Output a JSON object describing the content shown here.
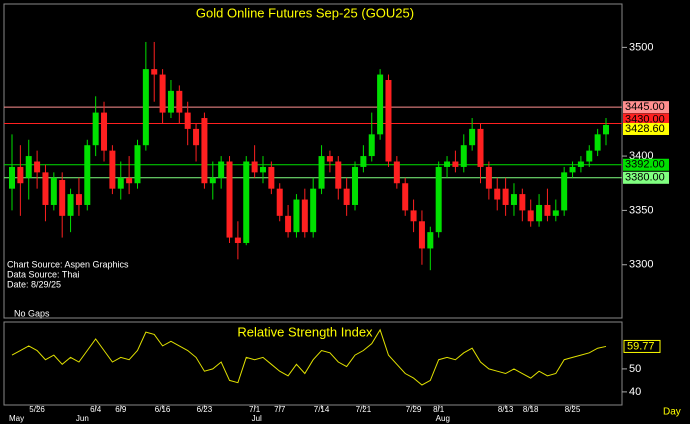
{
  "chart_data": {
    "type": "candlestick",
    "title": "Gold Online Futures Sep-25 (GOU25)",
    "notes": [
      "Chart Source: Aspen Graphics",
      "Data Source: Thai",
      "Date:   8/29/25"
    ],
    "gap_note": "No Gaps",
    "categories": [
      null,
      null,
      null,
      "5/26",
      null,
      null,
      null,
      null,
      null,
      null,
      "6/4",
      null,
      null,
      "6/9",
      null,
      null,
      null,
      null,
      "6/16",
      null,
      null,
      null,
      null,
      "6/23",
      null,
      null,
      null,
      null,
      null,
      "7/1",
      null,
      null,
      "7/7",
      null,
      null,
      null,
      null,
      "7/14",
      null,
      null,
      null,
      null,
      "7/21",
      null,
      null,
      null,
      null,
      null,
      "7/29",
      null,
      null,
      "8/1",
      null,
      null,
      null,
      null,
      null,
      null,
      null,
      "8/13",
      null,
      null,
      "8/18",
      null,
      null,
      null,
      null,
      "8/25",
      null,
      null,
      null,
      null
    ],
    "months": [
      "May",
      null,
      null,
      null,
      null,
      null,
      null,
      null,
      "Jun",
      null,
      null,
      null,
      null,
      null,
      null,
      null,
      null,
      null,
      null,
      null,
      null,
      null,
      null,
      null,
      null,
      null,
      null,
      null,
      null,
      "Jul",
      null,
      null,
      null,
      null,
      null,
      null,
      null,
      null,
      null,
      null,
      null,
      null,
      null,
      null,
      null,
      null,
      null,
      null,
      null,
      null,
      null,
      "Aug",
      null,
      null,
      null,
      null,
      null,
      null,
      null,
      null,
      null,
      null,
      null,
      null,
      null,
      null,
      null,
      null,
      null,
      null,
      null,
      null
    ],
    "x_unit": "Day",
    "open": [
      3370,
      3390,
      3380,
      3395,
      3385,
      3355,
      3378,
      3345,
      3365,
      3355,
      3410,
      3440,
      3405,
      3370,
      3380,
      3375,
      3410,
      3480,
      3475,
      3440,
      3460,
      3440,
      3425,
      3435,
      3375,
      3380,
      3395,
      3325,
      3320,
      3395,
      3385,
      3390,
      3370,
      3345,
      3330,
      3360,
      3330,
      3370,
      3400,
      3395,
      3370,
      3355,
      3390,
      3400,
      3420,
      3470,
      3395,
      3375,
      3350,
      3340,
      3315,
      3330,
      3390,
      3395,
      3390,
      3410,
      3425,
      3390,
      3370,
      3370,
      3355,
      3365,
      3350,
      3340,
      3355,
      3345,
      3350,
      3385,
      3390,
      3395,
      3405,
      3420
    ],
    "high": [
      3420,
      3410,
      3415,
      3405,
      3392,
      3385,
      3385,
      3370,
      3380,
      3415,
      3455,
      3450,
      3410,
      3395,
      3400,
      3415,
      3505,
      3505,
      3480,
      3470,
      3465,
      3450,
      3430,
      3440,
      3395,
      3400,
      3400,
      3340,
      3400,
      3410,
      3400,
      3395,
      3375,
      3355,
      3365,
      3370,
      3380,
      3410,
      3405,
      3400,
      3380,
      3395,
      3410,
      3440,
      3480,
      3475,
      3400,
      3380,
      3360,
      3350,
      3335,
      3395,
      3400,
      3405,
      3420,
      3435,
      3430,
      3395,
      3380,
      3380,
      3375,
      3370,
      3360,
      3365,
      3370,
      3360,
      3390,
      3395,
      3400,
      3410,
      3425,
      3435
    ],
    "low": [
      3350,
      3345,
      3360,
      3370,
      3340,
      3350,
      3325,
      3330,
      3345,
      3350,
      3400,
      3395,
      3365,
      3360,
      3365,
      3370,
      3405,
      3450,
      3430,
      3435,
      3430,
      3410,
      3395,
      3370,
      3360,
      3370,
      3320,
      3305,
      3318,
      3380,
      3375,
      3365,
      3340,
      3325,
      3325,
      3325,
      3325,
      3365,
      3385,
      3360,
      3345,
      3350,
      3385,
      3395,
      3415,
      3390,
      3370,
      3345,
      3330,
      3300,
      3295,
      3325,
      3380,
      3385,
      3385,
      3405,
      3375,
      3360,
      3350,
      3345,
      3345,
      3340,
      3335,
      3335,
      3340,
      3340,
      3345,
      3380,
      3385,
      3390,
      3400,
      3410
    ],
    "close": [
      3390,
      3375,
      3400,
      3385,
      3355,
      3380,
      3345,
      3365,
      3355,
      3410,
      3440,
      3405,
      3370,
      3380,
      3375,
      3410,
      3480,
      3475,
      3440,
      3460,
      3440,
      3425,
      3410,
      3375,
      3380,
      3395,
      3325,
      3320,
      3395,
      3385,
      3390,
      3370,
      3345,
      3330,
      3360,
      3330,
      3370,
      3400,
      3395,
      3370,
      3355,
      3390,
      3400,
      3420,
      3475,
      3395,
      3375,
      3350,
      3340,
      3315,
      3330,
      3390,
      3395,
      3390,
      3410,
      3425,
      3390,
      3370,
      3360,
      3355,
      3365,
      3350,
      3340,
      3355,
      3345,
      3350,
      3385,
      3390,
      3395,
      3405,
      3420,
      3428.6
    ],
    "up_color": "#00e000",
    "down_color": "#ff2020",
    "ylim": [
      3251,
      3539
    ],
    "yticks": [
      3300,
      3350,
      3400,
      3500
    ],
    "levels": [
      {
        "value": 3445,
        "label": "3445.00",
        "color": "#ff9090"
      },
      {
        "value": 3430,
        "label": "3430.00",
        "color": "#ff2020"
      },
      {
        "value": 3392,
        "label": "3392.00",
        "color": "#00e000"
      },
      {
        "value": 3380,
        "label": "3380.00",
        "color": "#80ff80"
      }
    ],
    "last_price": {
      "value": 3428.6,
      "label": "3428.60",
      "color": "#ffff00"
    },
    "rsi": {
      "title": "Relative Strength Index",
      "color": "#e0e000",
      "values": [
        56,
        58,
        60,
        58,
        54,
        56,
        52,
        55,
        53,
        58,
        63,
        58,
        53,
        55,
        54,
        58,
        66,
        65,
        60,
        62,
        60,
        58,
        55,
        49,
        50,
        53,
        45,
        44,
        55,
        54,
        55,
        52,
        49,
        47,
        52,
        48,
        54,
        58,
        57,
        53,
        51,
        56,
        58,
        61,
        67,
        56,
        52,
        48,
        46,
        43,
        45,
        54,
        55,
        54,
        57,
        59,
        53,
        50,
        49,
        48,
        50,
        48,
        46,
        49,
        47,
        48,
        54,
        55,
        56,
        57,
        59,
        59.77
      ],
      "ylim": [
        34.3,
        70.4
      ],
      "yticks": [
        40,
        50
      ]
    }
  }
}
